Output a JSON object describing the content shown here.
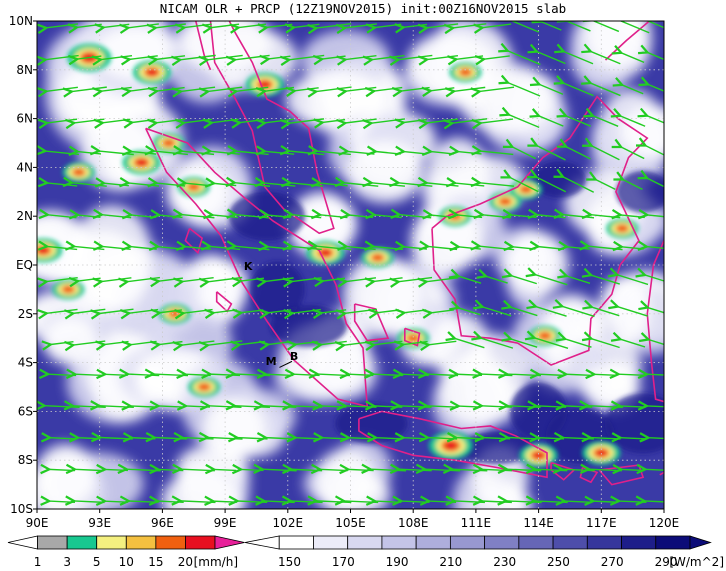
{
  "title": "NICAM OLR + PRCP (12Z19NOV2015) init:00Z16NOV2015 slab",
  "map": {
    "lon_range": [
      90,
      120
    ],
    "lat_range": [
      -10,
      10
    ],
    "x_ticks": [
      "90E",
      "93E",
      "96E",
      "99E",
      "102E",
      "105E",
      "108E",
      "111E",
      "114E",
      "117E",
      "120E"
    ],
    "y_ticks": [
      "10N",
      "8N",
      "6N",
      "4N",
      "2N",
      "EQ",
      "2S",
      "4S",
      "6S",
      "8S",
      "10S"
    ],
    "grid": "dotted, every 3° lon / 2° lat",
    "markers": [
      {
        "label": "K",
        "lon": 100.1,
        "lat": -0.2
      },
      {
        "label": "M",
        "lon": 101.2,
        "lat": -4.1
      },
      {
        "label": "B",
        "lon": 102.3,
        "lat": -3.9
      }
    ],
    "wind_color": "#22cc22",
    "coast_color": "#e0208a",
    "background_color": "#3a3aa6"
  },
  "precip_legend": {
    "levels": [
      "1",
      "3",
      "5",
      "10",
      "15",
      "20"
    ],
    "unit": "[mm/h]",
    "colors": [
      "#a8a8a8",
      "#18c890",
      "#f4f080",
      "#f4c040",
      "#f06010",
      "#e81020",
      "#e8209a"
    ]
  },
  "olr_legend": {
    "levels": [
      "150",
      "170",
      "190",
      "210",
      "230",
      "250",
      "270",
      "290"
    ],
    "unit": "[W/m^2]",
    "colors": [
      "#ffffff",
      "#ececf8",
      "#d8d8f0",
      "#c4c4e8",
      "#aeaedc",
      "#9898d0",
      "#8080c4",
      "#6666b6",
      "#4e4eaa",
      "#36369c",
      "#1e1e8a",
      "#0c0c78"
    ]
  }
}
